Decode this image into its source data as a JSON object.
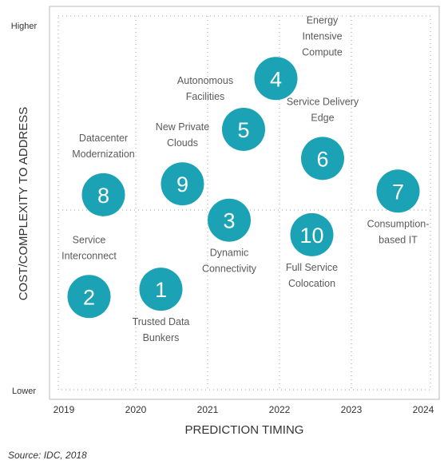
{
  "chart_data": {
    "type": "scatter",
    "title": "",
    "xlabel": "PREDICTION TIMING",
    "ylabel": "COST/COMPLEXITY TO ADDRESS",
    "x_ticks": [
      "2019",
      "2020",
      "2021",
      "2022",
      "2023",
      "2024"
    ],
    "xlim": [
      2019,
      2024
    ],
    "y_ticks": [
      "Lower",
      "Higher"
    ],
    "ylim": [
      0,
      10
    ],
    "grid": true,
    "legend": "none",
    "bubble_color": "#1ba3b5",
    "points": [
      {
        "number": "1",
        "label": [
          "Trusted Data",
          "Bunkers"
        ],
        "x": 2020.35,
        "y": 2.7,
        "label_pos": "below"
      },
      {
        "number": "2",
        "label": [
          "Service",
          "Interconnect"
        ],
        "x": 2019.35,
        "y": 2.5,
        "label_pos": "above"
      },
      {
        "number": "3",
        "label": [
          "Dynamic",
          "Connectivity"
        ],
        "x": 2021.3,
        "y": 4.6,
        "label_pos": "below"
      },
      {
        "number": "4",
        "label": [
          "Energy",
          "Intensive",
          "Compute"
        ],
        "x": 2021.95,
        "y": 8.5,
        "label_pos": "above-right"
      },
      {
        "number": "5",
        "label": [
          "Autonomous",
          "Facilities"
        ],
        "x": 2021.5,
        "y": 7.1,
        "label_pos": "above-left"
      },
      {
        "number": "6",
        "label": [
          "Service Delivery",
          "Edge"
        ],
        "x": 2022.6,
        "y": 6.3,
        "label_pos": "above"
      },
      {
        "number": "7",
        "label": [
          "Consumption-",
          "based IT"
        ],
        "x": 2023.65,
        "y": 5.4,
        "label_pos": "below"
      },
      {
        "number": "8",
        "label": [
          "Datacenter",
          "Modernization"
        ],
        "x": 2019.55,
        "y": 5.3,
        "label_pos": "above"
      },
      {
        "number": "9",
        "label": [
          "New Private",
          "Clouds"
        ],
        "x": 2020.65,
        "y": 5.6,
        "label_pos": "above"
      },
      {
        "number": "10",
        "label": [
          "Full Service",
          "Colocation"
        ],
        "x": 2022.45,
        "y": 4.2,
        "label_pos": "below"
      }
    ]
  },
  "source": "Source: IDC, 2018"
}
